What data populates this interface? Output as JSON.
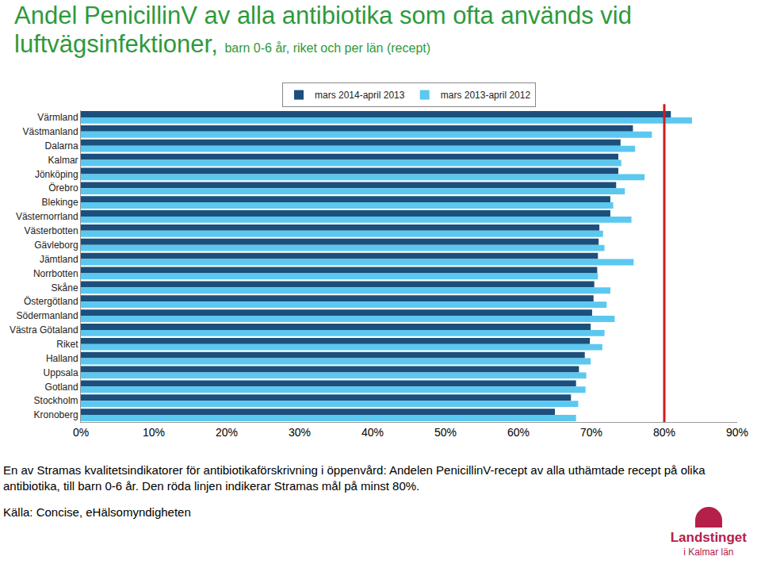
{
  "chart_data": {
    "type": "bar",
    "orientation": "horizontal",
    "title": "Andel PenicillinV av alla antibiotika som ofta används vid luftvägsinfektioner,",
    "subtitle": "barn 0-6 år, riket och per län (recept)",
    "categories": [
      "Värmland",
      "Västmanland",
      "Dalarna",
      "Kalmar",
      "Jönköping",
      "Örebro",
      "Blekinge",
      "Västernorrland",
      "Västerbotten",
      "Gävleborg",
      "Jämtland",
      "Norrbotten",
      "Skåne",
      "Östergötland",
      "Södermanland",
      "Västra Götaland",
      "Riket",
      "Halland",
      "Uppsala",
      "Gotland",
      "Stockholm",
      "Kronoberg"
    ],
    "series": [
      {
        "name": "mars 2014-april 2013",
        "color": "#1c4f7c",
        "values": [
          80.9,
          75.7,
          74.0,
          73.7,
          73.7,
          73.4,
          72.6,
          72.6,
          71.1,
          71.0,
          70.9,
          70.8,
          70.4,
          70.3,
          70.1,
          69.9,
          69.8,
          69.1,
          68.3,
          67.9,
          67.2,
          65.0
        ]
      },
      {
        "name": "mars 2013-april 2012",
        "color": "#5bc8f0",
        "values": [
          83.8,
          78.3,
          76.0,
          74.1,
          77.3,
          74.6,
          73.0,
          75.5,
          71.6,
          71.8,
          75.8,
          70.9,
          72.6,
          72.1,
          73.2,
          71.8,
          71.5,
          69.9,
          69.3,
          69.2,
          68.2,
          67.9
        ]
      }
    ],
    "xlim": [
      0,
      90
    ],
    "xticks": [
      {
        "value": 0,
        "label": "0%"
      },
      {
        "value": 10,
        "label": "10%"
      },
      {
        "value": 20,
        "label": "20%"
      },
      {
        "value": 30,
        "label": "30%"
      },
      {
        "value": 40,
        "label": "40%"
      },
      {
        "value": 50,
        "label": "50%"
      },
      {
        "value": 60,
        "label": "60%"
      },
      {
        "value": 70,
        "label": "70%"
      },
      {
        "value": 80,
        "label": "80%"
      },
      {
        "value": 90,
        "label": "90%"
      }
    ],
    "target_line": 80,
    "grid": false,
    "legend": "top",
    "caption": "En av Stramas kvalitetsindikatorer för antibiotikaförskrivning i öppenvård: Andelen PenicillinV-recept av alla uthämtade recept på olika antibiotika, till barn 0-6 år. Den röda linjen indikerar Stramas mål på minst 80%.",
    "source": "Källa: Concise, eHälsomyndigheten",
    "logo": [
      "Landstinget",
      "i Kalmar län"
    ]
  }
}
